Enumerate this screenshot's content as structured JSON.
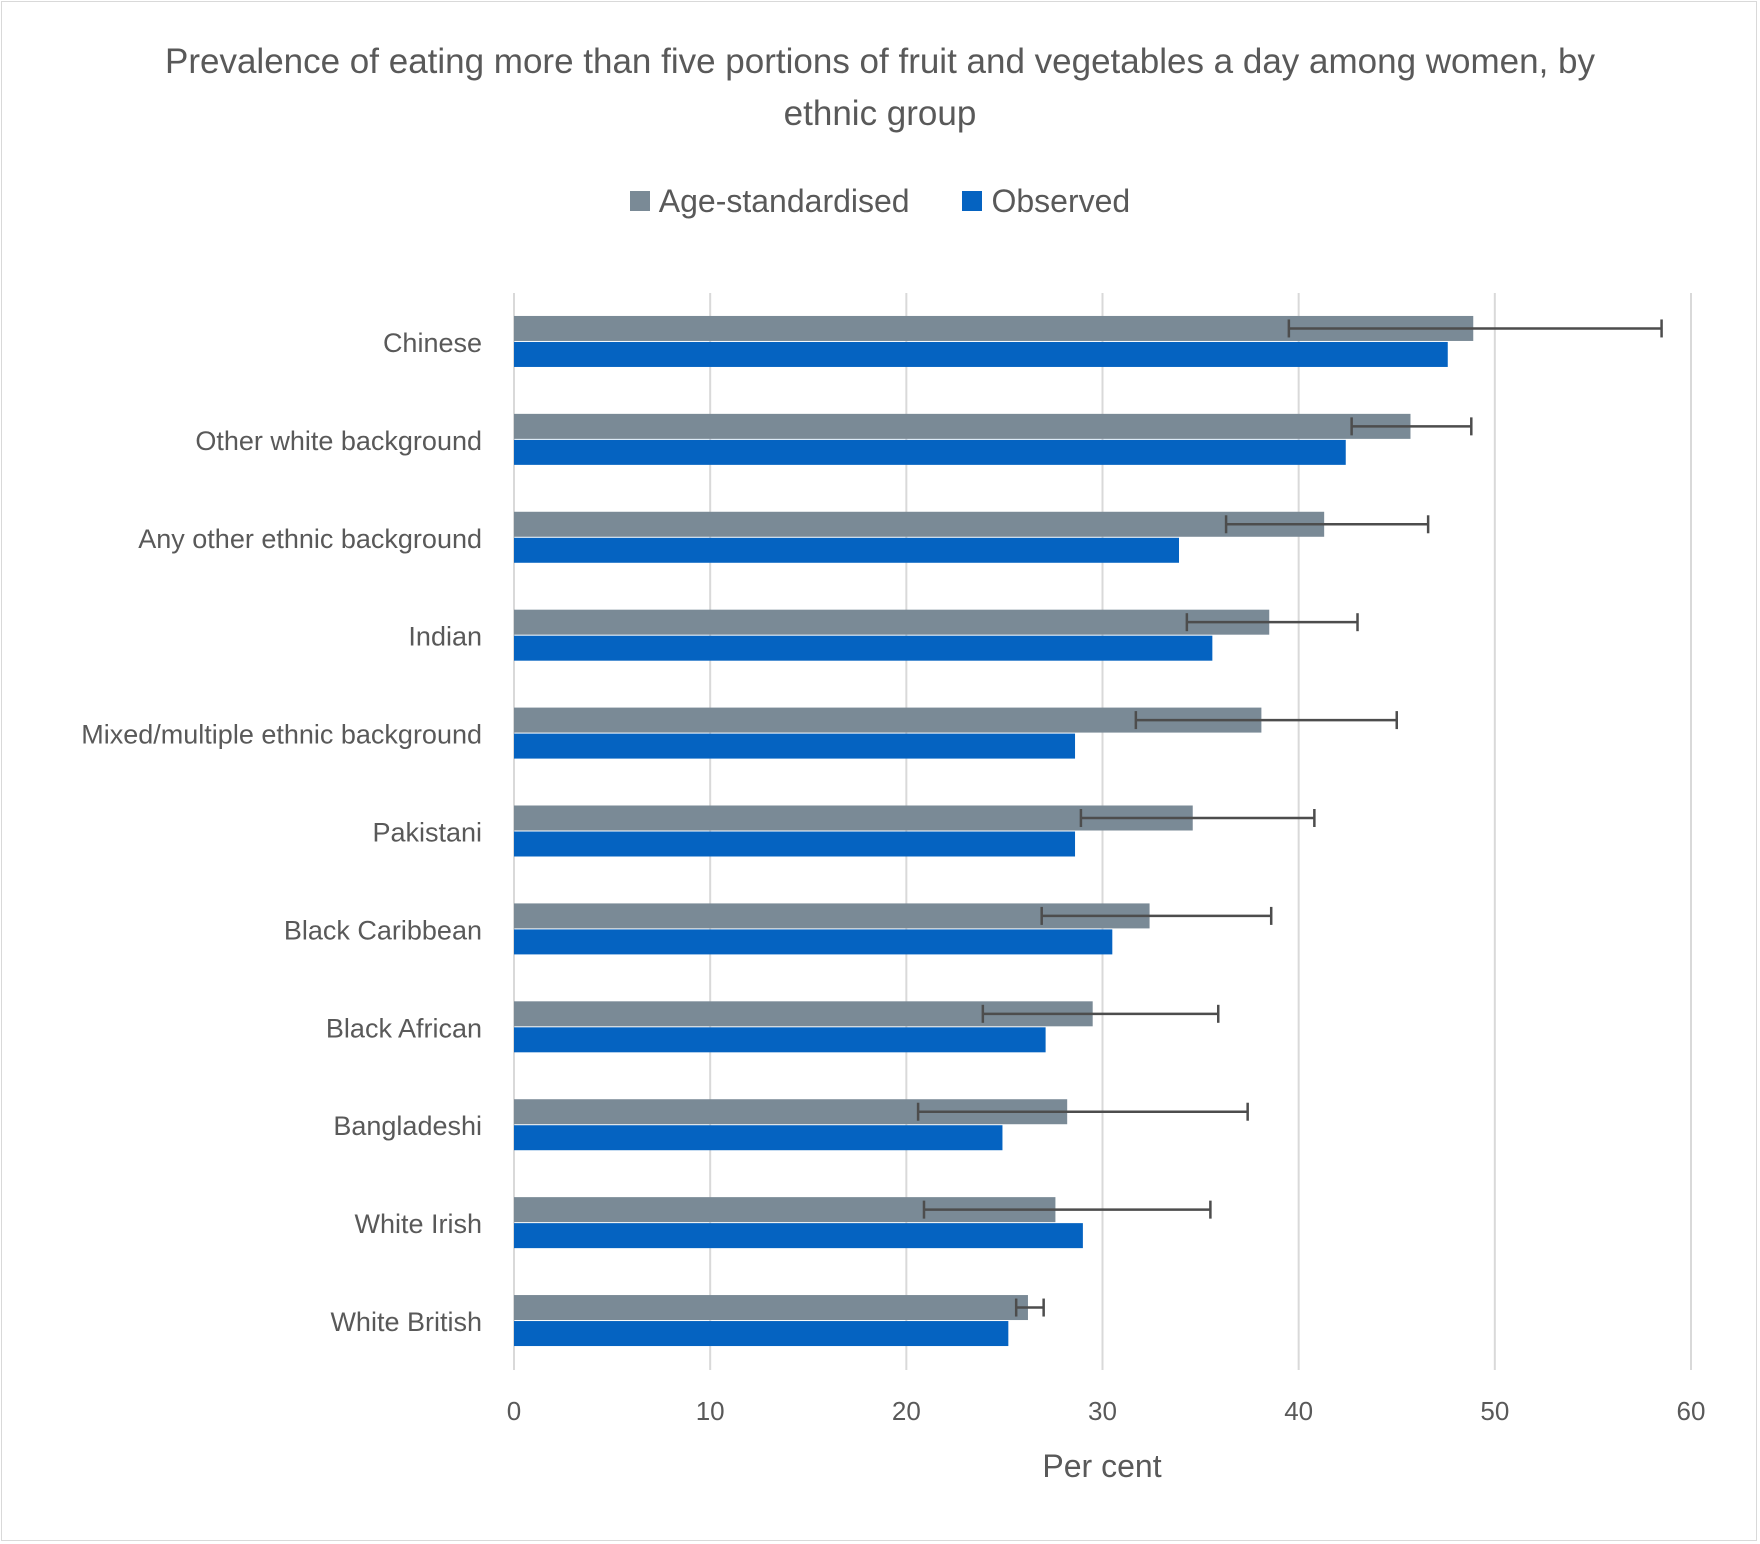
{
  "chart_data": {
    "type": "bar",
    "orientation": "horizontal",
    "title": "Prevalence of eating more than five portions of fruit and vegetables a day among women, by ethnic group",
    "xlabel": "Per cent",
    "ylabel": "",
    "xlim": [
      0,
      60
    ],
    "xticks": [
      "0",
      "10",
      "20",
      "30",
      "40",
      "50",
      "60"
    ],
    "grid": "vertical",
    "legend_position": "top",
    "categories": [
      "Chinese",
      "Other white background",
      "Any other ethnic background",
      "Indian",
      "Mixed/multiple ethnic background",
      "Pakistani",
      "Black Caribbean",
      "Black African",
      "Bangladeshi",
      "White Irish",
      "White British"
    ],
    "series": [
      {
        "name": "Age-standardised",
        "color": "#7a8a96",
        "values": [
          48.9,
          45.7,
          41.3,
          38.5,
          38.1,
          34.6,
          32.4,
          29.5,
          28.2,
          27.6,
          26.2
        ],
        "ci_low": [
          39.5,
          42.7,
          36.3,
          34.3,
          31.7,
          28.9,
          26.9,
          23.9,
          20.6,
          20.9,
          25.6
        ],
        "ci_high": [
          58.5,
          48.8,
          46.6,
          43.0,
          45.0,
          40.8,
          38.6,
          35.9,
          37.4,
          35.5,
          27.0
        ]
      },
      {
        "name": "Observed",
        "color": "#0563c1",
        "values": [
          47.6,
          42.4,
          33.9,
          35.6,
          28.6,
          28.6,
          30.5,
          27.1,
          24.9,
          29.0,
          25.2
        ]
      }
    ]
  }
}
